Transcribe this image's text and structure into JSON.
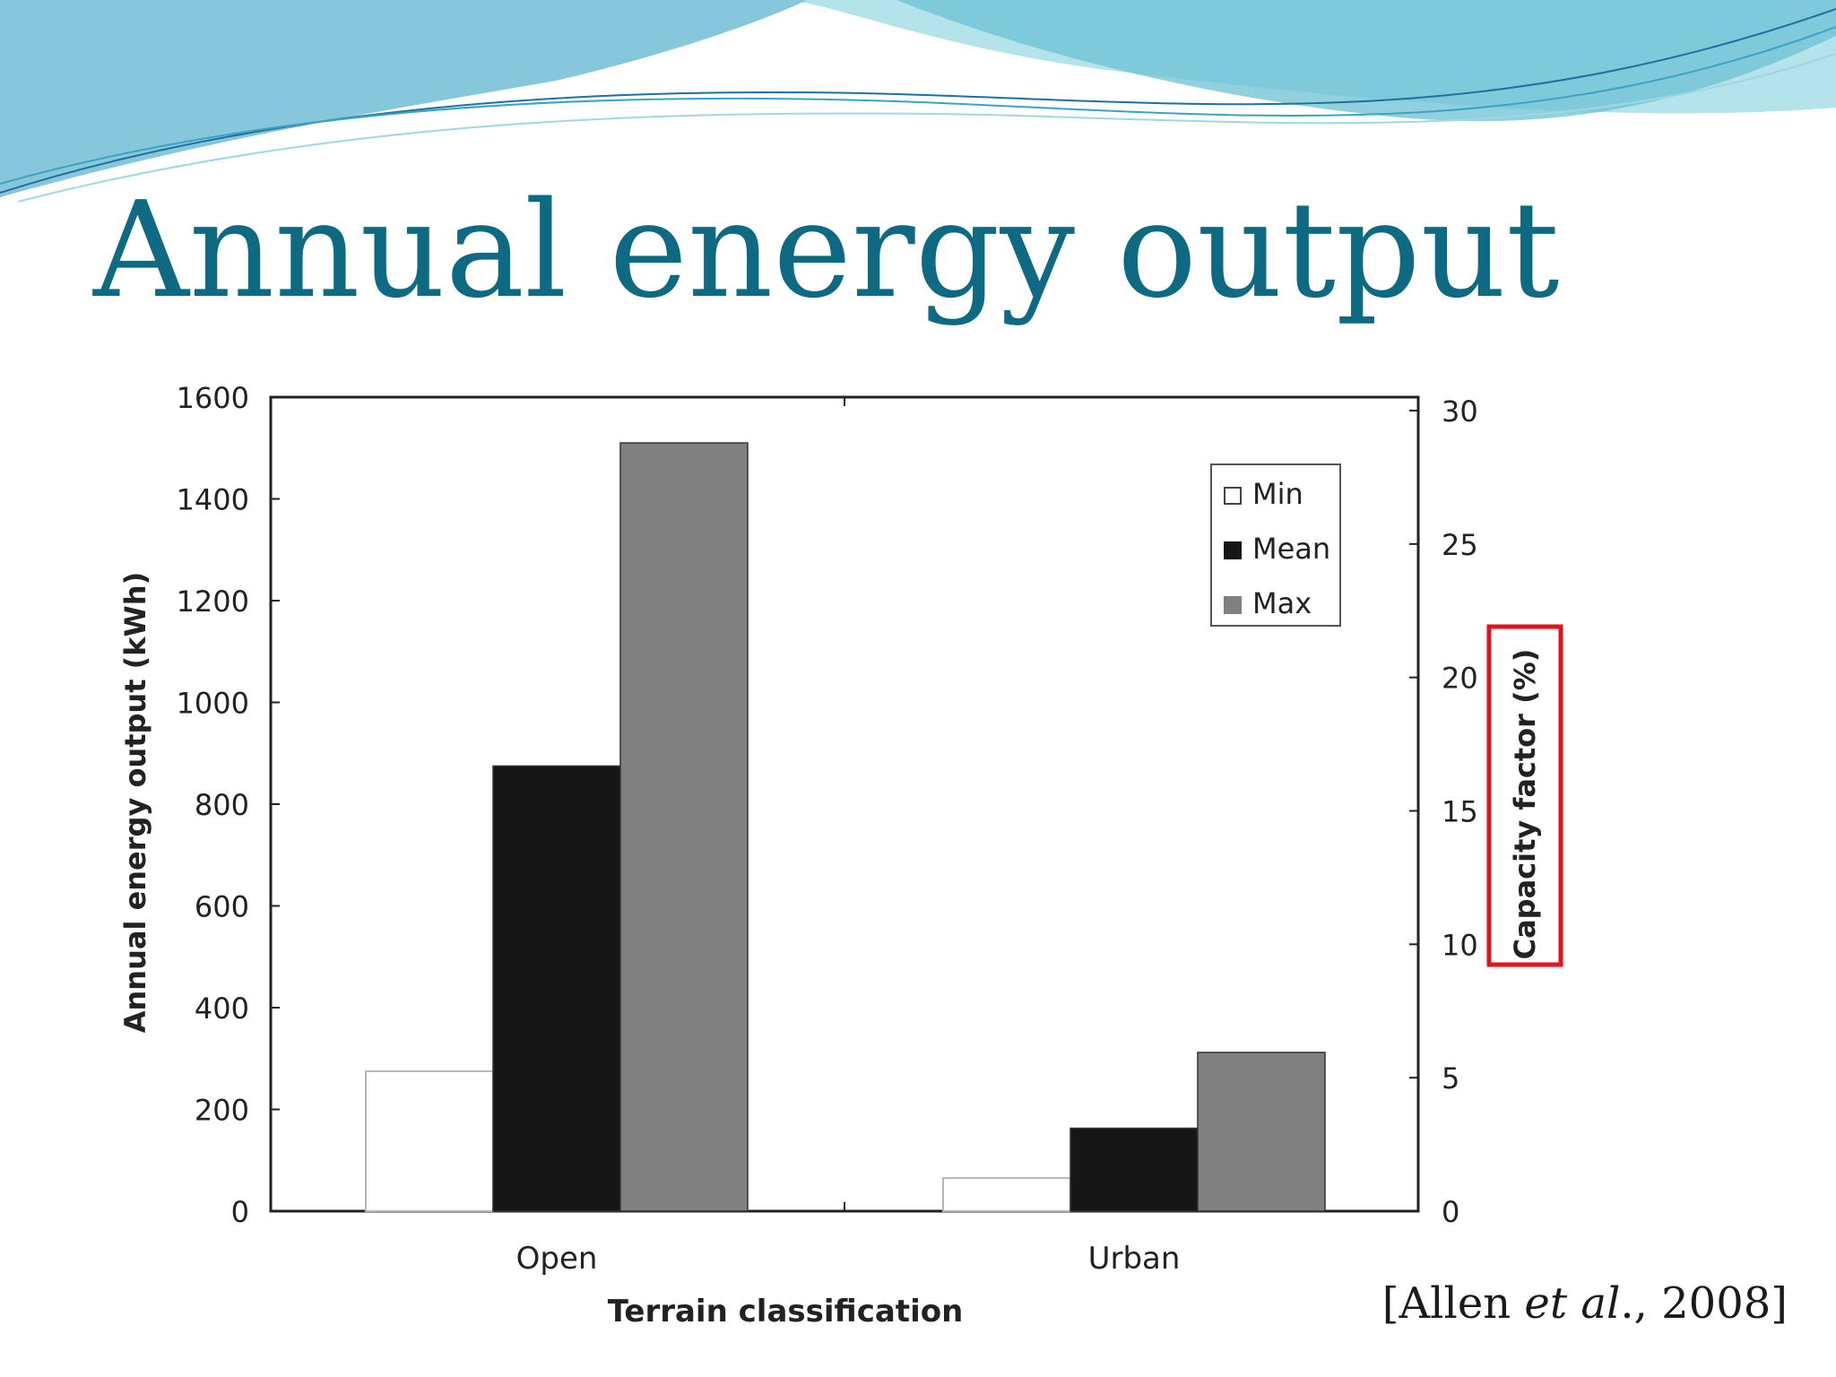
{
  "slide": {
    "title": "Annual energy output",
    "citation_prefix": "[Allen ",
    "citation_italic": "et al",
    "citation_suffix": "., 2008]"
  },
  "colors": {
    "title": "#0e6a82",
    "highlight_box": "#e0141e",
    "wave_light": "#b4e3ea",
    "wave_mid": "#7cc8d8",
    "wave_dark": "#1f6fa0"
  },
  "chart_data": {
    "type": "bar",
    "categories": [
      "Open",
      "Urban"
    ],
    "series": [
      {
        "name": "Min",
        "values": [
          275,
          65
        ],
        "color": "#ffffff"
      },
      {
        "name": "Mean",
        "values": [
          875,
          163
        ],
        "color": "#161616"
      },
      {
        "name": "Max",
        "values": [
          1510,
          312
        ],
        "color": "#808080"
      }
    ],
    "xlabel": "Terrain classification",
    "ylabel": "Annual energy output (kWh)",
    "y2label": "Capacity factor (%)",
    "ylim": [
      0,
      1600
    ],
    "yticks": [
      "0",
      "200",
      "400",
      "600",
      "800",
      "1000",
      "1200",
      "1400",
      "1600"
    ],
    "y2lim": [
      0,
      30
    ],
    "y2ticks": [
      "0",
      "5",
      "10",
      "15",
      "20",
      "25",
      "30"
    ],
    "legend_position": "top-right",
    "grid": false,
    "highlighted": "y2label"
  }
}
